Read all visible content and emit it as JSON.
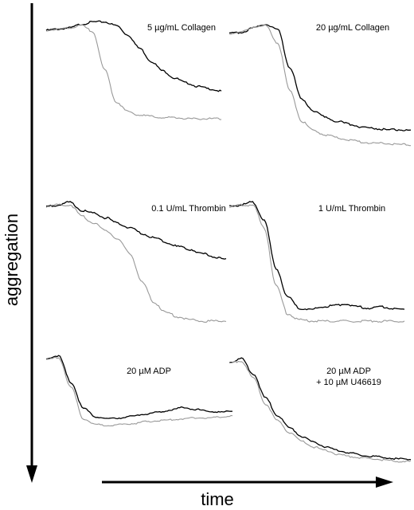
{
  "chart_data": [
    {
      "type": "line",
      "title": "5 µg/mL Collagen",
      "series": [
        {
          "color": "#000000",
          "values": [
            0.88,
            0.89,
            0.9,
            0.93,
            0.95,
            0.95,
            0.92,
            0.84,
            0.73,
            0.62,
            0.54,
            0.48,
            0.44,
            0.41,
            0.39,
            0.37
          ]
        },
        {
          "color": "#999999",
          "values": [
            0.88,
            0.89,
            0.9,
            0.92,
            0.87,
            0.55,
            0.28,
            0.2,
            0.17,
            0.16,
            0.15,
            0.15,
            0.14,
            0.14,
            0.14,
            0.14
          ]
        }
      ]
    },
    {
      "type": "line",
      "title": "20 µg/mL Collagen",
      "series": [
        {
          "color": "#000000",
          "values": [
            0.87,
            0.88,
            0.91,
            0.94,
            0.9,
            0.62,
            0.38,
            0.3,
            0.25,
            0.22,
            0.2,
            0.18,
            0.17,
            0.16,
            0.16,
            0.15
          ]
        },
        {
          "color": "#999999",
          "values": [
            0.87,
            0.88,
            0.92,
            0.93,
            0.8,
            0.45,
            0.22,
            0.15,
            0.12,
            0.1,
            0.08,
            0.07,
            0.06,
            0.06,
            0.05,
            0.05
          ]
        }
      ]
    },
    {
      "type": "line",
      "title": "0.1 U/mL Thrombin",
      "series": [
        {
          "color": "#000000",
          "values": [
            0.85,
            0.86,
            0.88,
            0.82,
            0.8,
            0.77,
            0.73,
            0.7,
            0.66,
            0.63,
            0.6,
            0.57,
            0.55,
            0.52,
            0.5,
            0.48
          ]
        },
        {
          "color": "#999999",
          "values": [
            0.85,
            0.86,
            0.86,
            0.78,
            0.73,
            0.68,
            0.62,
            0.52,
            0.32,
            0.18,
            0.11,
            0.08,
            0.06,
            0.05,
            0.05,
            0.05
          ]
        }
      ]
    },
    {
      "type": "line",
      "title": "1 U/mL Thrombin",
      "series": [
        {
          "color": "#000000",
          "values": [
            0.85,
            0.86,
            0.88,
            0.75,
            0.42,
            0.22,
            0.14,
            0.13,
            0.15,
            0.16,
            0.17,
            0.15,
            0.14,
            0.15,
            0.14,
            0.13
          ]
        },
        {
          "color": "#999999",
          "values": [
            0.85,
            0.86,
            0.86,
            0.7,
            0.3,
            0.1,
            0.06,
            0.05,
            0.05,
            0.05,
            0.05,
            0.05,
            0.05,
            0.05,
            0.05,
            0.05
          ]
        }
      ]
    },
    {
      "type": "line",
      "title": "20 µM ADP",
      "series": [
        {
          "color": "#000000",
          "values": [
            0.85,
            0.88,
            0.6,
            0.33,
            0.24,
            0.22,
            0.23,
            0.25,
            0.27,
            0.29,
            0.31,
            0.34,
            0.32,
            0.3,
            0.29,
            0.3
          ]
        },
        {
          "color": "#999999",
          "values": [
            0.84,
            0.86,
            0.55,
            0.22,
            0.16,
            0.15,
            0.16,
            0.17,
            0.19,
            0.2,
            0.21,
            0.22,
            0.23,
            0.23,
            0.24,
            0.25
          ]
        }
      ]
    },
    {
      "type": "line",
      "title": "20 µM ADP\n+ 10 µM U46619",
      "series": [
        {
          "color": "#000000",
          "values": [
            0.85,
            0.88,
            0.75,
            0.55,
            0.4,
            0.3,
            0.23,
            0.18,
            0.14,
            0.11,
            0.09,
            0.07,
            0.06,
            0.05,
            0.04,
            0.04
          ]
        },
        {
          "color": "#999999",
          "values": [
            0.84,
            0.86,
            0.72,
            0.5,
            0.36,
            0.26,
            0.19,
            0.14,
            0.11,
            0.08,
            0.06,
            0.05,
            0.04,
            0.03,
            0.02,
            0.02
          ]
        }
      ]
    }
  ],
  "axes": {
    "ylabel": "aggregation",
    "xlabel": "time"
  }
}
